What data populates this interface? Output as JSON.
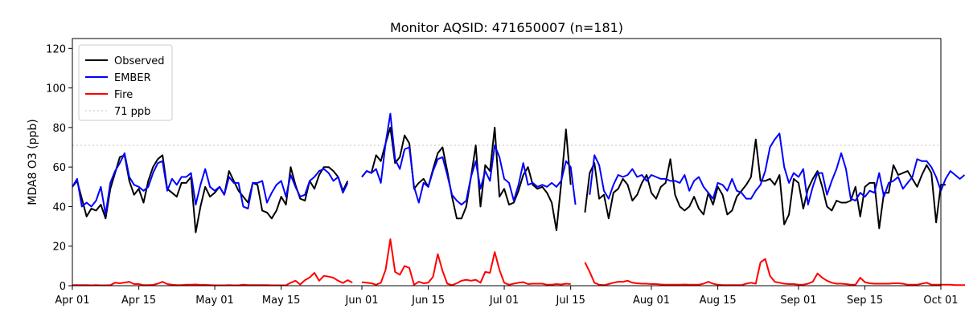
{
  "chart_data": {
    "type": "line",
    "title": "Monitor AQSID: 471650007 (n=181)",
    "xlabel": "",
    "ylabel": "MDA8 O3 (ppb)",
    "x_start": "2024-04-01",
    "x_ticks": [
      {
        "day": 0,
        "label": "Apr 01"
      },
      {
        "day": 14,
        "label": "Apr 15"
      },
      {
        "day": 30,
        "label": "May 01"
      },
      {
        "day": 44,
        "label": "May 15"
      },
      {
        "day": 61,
        "label": "Jun 01"
      },
      {
        "day": 75,
        "label": "Jun 15"
      },
      {
        "day": 91,
        "label": "Jul 01"
      },
      {
        "day": 105,
        "label": "Jul 15"
      },
      {
        "day": 122,
        "label": "Aug 01"
      },
      {
        "day": 136,
        "label": "Aug 15"
      },
      {
        "day": 153,
        "label": "Sep 01"
      },
      {
        "day": 167,
        "label": "Sep 15"
      },
      {
        "day": 183,
        "label": "Oct 01"
      }
    ],
    "xlim": [
      0,
      183
    ],
    "ylim": [
      0,
      125
    ],
    "y_ticks": [
      0,
      20,
      40,
      60,
      80,
      100,
      120
    ],
    "grid": false,
    "legend_position": "top-left",
    "reference_line": {
      "value": 71,
      "name": "71 ppb",
      "color": "#cccccc"
    },
    "series": [
      {
        "name": "Observed",
        "color": "#000000",
        "values": [
          50,
          53,
          44,
          35,
          39,
          38,
          41,
          34,
          49,
          57,
          65,
          66,
          53,
          46,
          49,
          42,
          53,
          60,
          64,
          66,
          49,
          47,
          45,
          52,
          52,
          55,
          27,
          40,
          50,
          45,
          47,
          50,
          46,
          58,
          53,
          48,
          45,
          42,
          52,
          51,
          38,
          37,
          34,
          38,
          45,
          41,
          60,
          51,
          44,
          43,
          53,
          49,
          56,
          60,
          60,
          58,
          55,
          48,
          53,
          null,
          null,
          55,
          58,
          57,
          66,
          63,
          72,
          80,
          62,
          65,
          76,
          72,
          49,
          52,
          54,
          50,
          59,
          67,
          70,
          58,
          45,
          34,
          34,
          40,
          55,
          71,
          40,
          61,
          58,
          80,
          45,
          49,
          41,
          42,
          48,
          56,
          60,
          51,
          49,
          50,
          47,
          42,
          28,
          52,
          79,
          51,
          null,
          null,
          37,
          57,
          62,
          44,
          46,
          34,
          47,
          49,
          54,
          51,
          43,
          46,
          52,
          56,
          47,
          44,
          50,
          52,
          64,
          46,
          40,
          38,
          40,
          45,
          39,
          36,
          47,
          41,
          50,
          46,
          36,
          38,
          45,
          48,
          51,
          55,
          74,
          53,
          53,
          54,
          51,
          56,
          31,
          36,
          54,
          52,
          39,
          49,
          54,
          58,
          50,
          40,
          38,
          43,
          42,
          42,
          43,
          50,
          35,
          50,
          52,
          52,
          29,
          47,
          47,
          61,
          56,
          57,
          58,
          54,
          50,
          56,
          61,
          57,
          32,
          51,
          51
        ]
      },
      {
        "name": "EMBER",
        "color": "#0000ff",
        "values": [
          50,
          54,
          40,
          42,
          40,
          43,
          50,
          36,
          52,
          58,
          62,
          67,
          55,
          51,
          50,
          48,
          50,
          57,
          62,
          63,
          48,
          54,
          51,
          55,
          55,
          57,
          41,
          51,
          59,
          50,
          48,
          50,
          46,
          55,
          52,
          52,
          40,
          39,
          52,
          52,
          53,
          42,
          47,
          51,
          53,
          45,
          56,
          50,
          45,
          46,
          53,
          55,
          58,
          59,
          57,
          53,
          55,
          47,
          52,
          null,
          null,
          55,
          58,
          57,
          59,
          52,
          72,
          87,
          64,
          59,
          69,
          70,
          50,
          42,
          52,
          50,
          58,
          64,
          65,
          56,
          46,
          43,
          41,
          43,
          55,
          63,
          49,
          58,
          53,
          71,
          65,
          54,
          52,
          43,
          51,
          62,
          51,
          52,
          50,
          51,
          50,
          52,
          50,
          53,
          63,
          60,
          41,
          null,
          null,
          46,
          66,
          61,
          48,
          44,
          51,
          56,
          55,
          56,
          59,
          55,
          56,
          53,
          56,
          55,
          54,
          54,
          53,
          53,
          52,
          56,
          48,
          53,
          55,
          50,
          47,
          44,
          52,
          51,
          48,
          54,
          48,
          47,
          44,
          44,
          48,
          51,
          58,
          70,
          74,
          77,
          60,
          52,
          57,
          55,
          59,
          41,
          50,
          57,
          57,
          46,
          53,
          59,
          67,
          59,
          44,
          43,
          47,
          45,
          48,
          47,
          57,
          45,
          52,
          53,
          55,
          49,
          52,
          55,
          64,
          63,
          63,
          60,
          55,
          48,
          54,
          58,
          56,
          54,
          56
        ]
      },
      {
        "name": "Fire",
        "color": "#ff0000",
        "values": [
          0.3,
          0.3,
          0.3,
          0.3,
          0.2,
          0.3,
          0.2,
          0.2,
          0.3,
          1.5,
          1.2,
          1.6,
          2.0,
          0.8,
          0.8,
          0.3,
          0.3,
          0.4,
          1.0,
          2.0,
          0.8,
          0.5,
          0.3,
          0.3,
          0.5,
          0.5,
          0.6,
          0.4,
          0.4,
          0.3,
          0.2,
          0.2,
          0.2,
          0.3,
          0.2,
          0.2,
          0.5,
          0.3,
          0.3,
          0.3,
          0.3,
          0.3,
          0.2,
          0.2,
          0.2,
          0.2,
          1.5,
          2.5,
          0.6,
          2.8,
          4.2,
          6.5,
          2.5,
          5.0,
          4.6,
          4.0,
          2.5,
          1.4,
          2.8,
          1.6,
          null,
          1.8,
          1.5,
          1.2,
          0.5,
          1.5,
          8.0,
          23.5,
          7.0,
          5.5,
          10.0,
          9.0,
          0.5,
          2.0,
          1.2,
          1.5,
          4.5,
          16.0,
          7.5,
          1.0,
          0.3,
          1.2,
          2.5,
          3.0,
          2.5,
          3.0,
          1.5,
          7.0,
          6.5,
          17.0,
          8.0,
          1.5,
          0.5,
          1.0,
          1.5,
          1.8,
          0.8,
          1.0,
          1.0,
          1.0,
          0.5,
          0.5,
          0.8,
          0.6,
          1.0,
          0.8,
          null,
          null,
          11.8,
          7.0,
          1.5,
          0.5,
          0.3,
          0.8,
          1.5,
          2.0,
          2.0,
          2.5,
          1.5,
          1.2,
          1.0,
          1.0,
          0.8,
          0.8,
          0.6,
          0.5,
          0.5,
          0.5,
          0.5,
          0.6,
          0.5,
          0.5,
          0.5,
          1.0,
          2.0,
          1.0,
          0.5,
          0.3,
          0.3,
          0.3,
          0.3,
          0.3,
          1.0,
          1.5,
          1.0,
          11.8,
          13.5,
          5.0,
          2.0,
          1.5,
          1.0,
          0.8,
          0.8,
          0.5,
          0.5,
          1.0,
          2.0,
          6.2,
          4.0,
          2.5,
          1.5,
          1.0,
          1.0,
          0.8,
          0.5,
          0.5,
          4.0,
          1.8,
          1.2,
          1.0,
          1.0,
          1.0,
          1.0,
          1.2,
          1.2,
          1.0,
          0.5,
          0.5,
          0.5,
          1.0,
          1.5,
          0.5,
          0.5,
          0.5,
          0.5,
          0.5,
          0.3,
          0.3,
          0.3,
          0.3,
          0.3
        ]
      }
    ]
  }
}
